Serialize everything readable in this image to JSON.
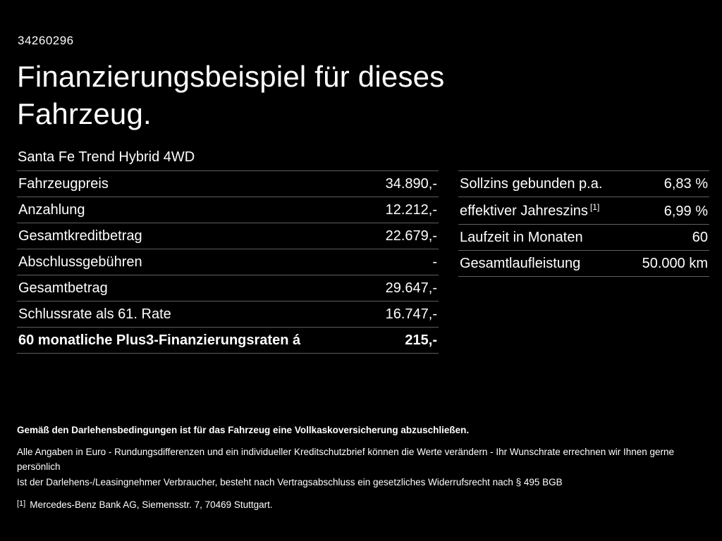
{
  "page": {
    "reference_number": "34260296",
    "title": "Finanzierungsbeispiel für dieses Fahrzeug.",
    "vehicle_name": "Santa Fe Trend Hybrid 4WD"
  },
  "financing_table": {
    "rows": [
      {
        "label": "Fahrzeugpreis",
        "value": "34.890,-"
      },
      {
        "label": "Anzahlung",
        "value": "12.212,-"
      },
      {
        "label": "Gesamtkreditbetrag",
        "value": "22.679,-"
      },
      {
        "label": "Abschlussgebühren",
        "value": "-"
      },
      {
        "label": "Gesamtbetrag",
        "value": "29.647,-"
      },
      {
        "label": "Schlussrate als 61. Rate",
        "value": "16.747,-"
      },
      {
        "label": "60 monatliche Plus3-Finanzierungsraten á",
        "value": "215,-"
      }
    ]
  },
  "conditions_table": {
    "rows": [
      {
        "label": "Sollzins gebunden p.a.",
        "value": "6,83 %"
      },
      {
        "label": "effektiver Jahreszins",
        "sup": "[1]",
        "value": "6,99 %"
      },
      {
        "label": "Laufzeit in Monaten",
        "value": "60"
      },
      {
        "label": "Gesamtlaufleistung",
        "value": "50.000 km"
      }
    ]
  },
  "footer": {
    "insurance_note": "Gemäß den Darlehensbedingungen ist für das Fahrzeug eine Vollkaskoversicherung abzuschließen.",
    "disclaimer_line1": "Alle Angaben in Euro - Rundungsdifferenzen und ein individueller Kreditschutzbrief können die Werte verändern - Ihr Wunschrate errechnen wir Ihnen gerne persönlich",
    "disclaimer_line2": "Ist der Darlehens-/Leasingnehmer Verbraucher, besteht nach Vertragsabschluss ein gesetzliches Widerrufsrecht nach § 495 BGB",
    "footnote_marker": "[1]",
    "footnote_text": "Mercedes-Benz Bank AG, Siemensstr. 7, 70469 Stuttgart."
  }
}
